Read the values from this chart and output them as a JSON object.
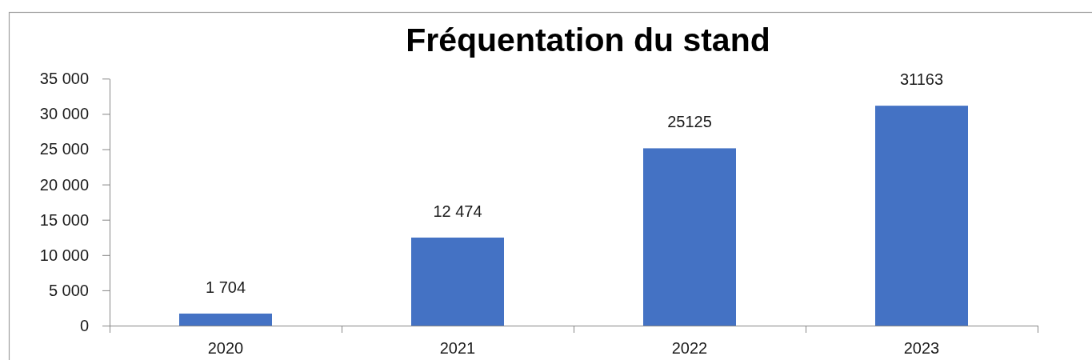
{
  "chart_data": {
    "type": "bar",
    "title": "Fréquentation du stand",
    "categories": [
      "2020",
      "2021",
      "2022",
      "2023"
    ],
    "values": [
      1704,
      12474,
      25125,
      31163
    ],
    "value_labels": [
      "1 704",
      "12 474",
      "25125",
      "31163"
    ],
    "color": "#4472c4",
    "ylim": [
      0,
      35000
    ],
    "yticks": [
      {
        "value": 0,
        "label": "0"
      },
      {
        "value": 5000,
        "label": "5 000"
      },
      {
        "value": 10000,
        "label": "10 000"
      },
      {
        "value": 15000,
        "label": "15 000"
      },
      {
        "value": 20000,
        "label": "20 000"
      },
      {
        "value": 25000,
        "label": "25 000"
      },
      {
        "value": 30000,
        "label": "30 000"
      },
      {
        "value": 35000,
        "label": "35 000"
      }
    ]
  }
}
